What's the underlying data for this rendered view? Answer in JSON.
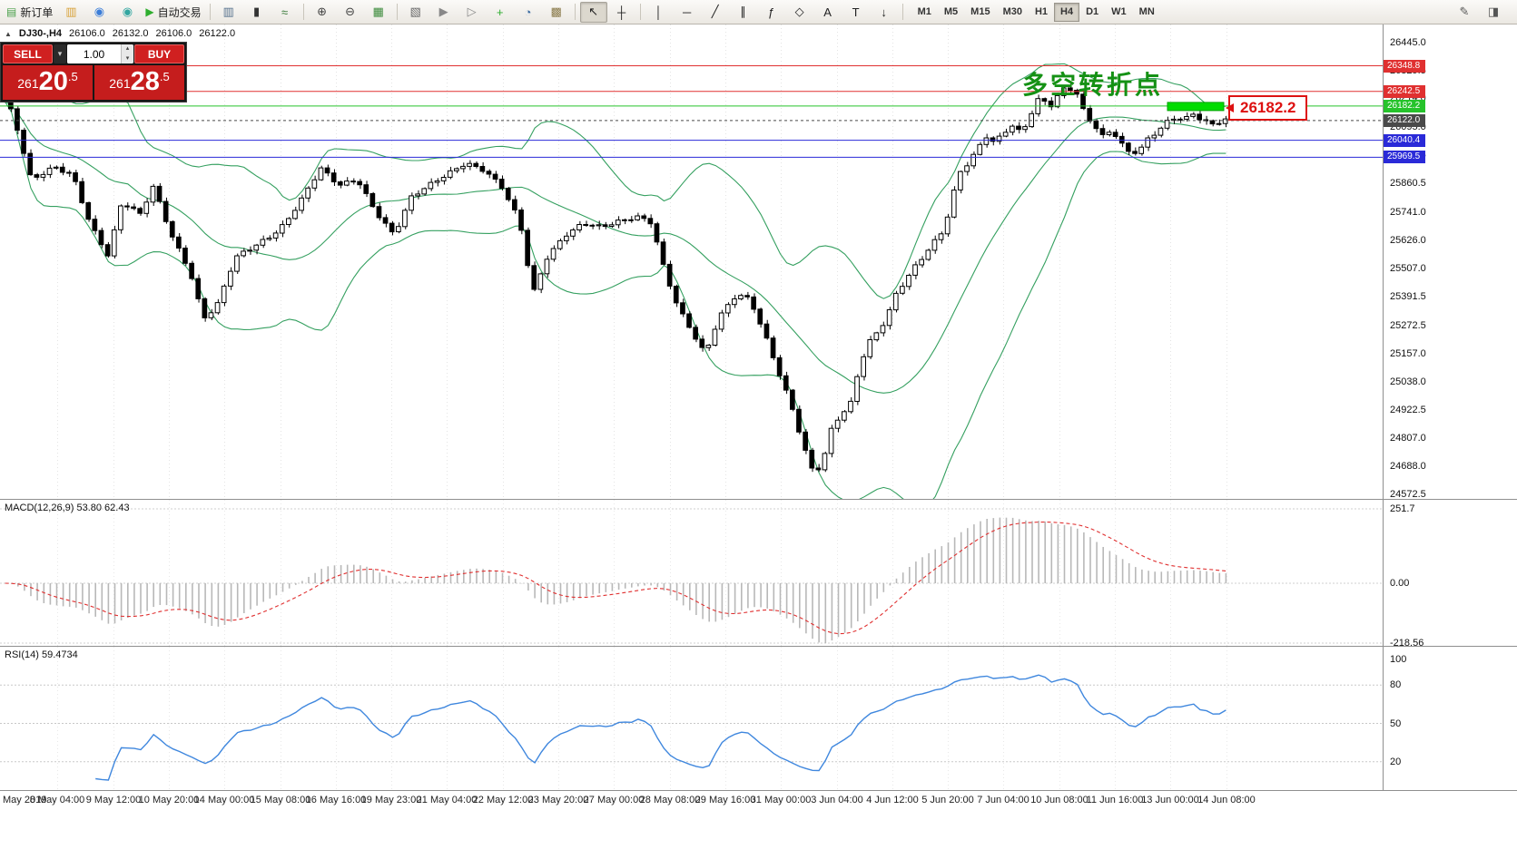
{
  "toolbar": {
    "items": [
      {
        "kind": "button",
        "name": "new-order-button",
        "icon_name": "new-order-icon",
        "glyph": "▤",
        "glyph_color": "#4aa04a",
        "label": "新订单"
      },
      {
        "kind": "icon",
        "name": "chart-window-icon",
        "glyph": "▥",
        "color": "#d8a23a"
      },
      {
        "kind": "icon",
        "name": "market-watch-icon",
        "glyph": "◉",
        "color": "#3b7dd8"
      },
      {
        "kind": "icon",
        "name": "strategy-tester-icon",
        "glyph": "◉",
        "color": "#32a6a0"
      },
      {
        "kind": "button",
        "name": "auto-trading-button",
        "icon_name": "auto-trading-icon",
        "glyph": "▶",
        "glyph_color": "#2fae2f",
        "label": "自动交易"
      },
      {
        "kind": "sep"
      },
      {
        "kind": "icon",
        "name": "bar-chart-icon",
        "glyph": "▥",
        "color": "#55708c"
      },
      {
        "kind": "icon",
        "name": "candlestick-chart-icon",
        "glyph": "▮",
        "color": "#333333"
      },
      {
        "kind": "icon",
        "name": "line-chart-icon",
        "glyph": "≈",
        "color": "#3a7a3a"
      },
      {
        "kind": "sep"
      },
      {
        "kind": "icon",
        "name": "zoom-in-icon",
        "glyph": "⊕",
        "color": "#444444"
      },
      {
        "kind": "icon",
        "name": "zoom-out-icon",
        "glyph": "⊖",
        "color": "#444444"
      },
      {
        "kind": "icon",
        "name": "tile-windows-icon",
        "glyph": "▦",
        "color": "#3a8a3a"
      },
      {
        "kind": "sep"
      },
      {
        "kind": "icon",
        "name": "arrange-windows-icon",
        "glyph": "▧",
        "color": "#666666"
      },
      {
        "kind": "icon",
        "name": "auto-scroll-icon",
        "glyph": "▶",
        "color": "#888888"
      },
      {
        "kind": "icon",
        "name": "chart-shift-icon",
        "glyph": "▷",
        "color": "#888888"
      },
      {
        "kind": "icon",
        "name": "add-indicator-icon",
        "glyph": "+",
        "color": "#2fae2f"
      },
      {
        "kind": "icon",
        "name": "periods-icon",
        "glyph": "◔",
        "color": "#3a6aa0"
      },
      {
        "kind": "icon",
        "name": "templates-icon",
        "glyph": "▩",
        "color": "#8a7a4a"
      },
      {
        "kind": "sep"
      },
      {
        "kind": "icon",
        "name": "cursor-icon",
        "glyph": "↖",
        "color": "#222222",
        "active": true
      },
      {
        "kind": "icon",
        "name": "crosshair-icon",
        "glyph": "┼",
        "color": "#222222"
      },
      {
        "kind": "sep"
      },
      {
        "kind": "icon",
        "name": "vertical-line-icon",
        "glyph": "│",
        "color": "#222222"
      },
      {
        "kind": "icon",
        "name": "horizontal-line-icon",
        "glyph": "─",
        "color": "#222222"
      },
      {
        "kind": "icon",
        "name": "trendline-icon",
        "glyph": "╱",
        "color": "#222222"
      },
      {
        "kind": "icon",
        "name": "equidistant-channel-icon",
        "glyph": "∥",
        "color": "#222222"
      },
      {
        "kind": "icon",
        "name": "fibonacci-icon",
        "glyph": "ƒ",
        "color": "#222222"
      },
      {
        "kind": "icon",
        "name": "shapes-icon",
        "glyph": "◇",
        "color": "#222222"
      },
      {
        "kind": "icon",
        "name": "text-icon",
        "glyph": "A",
        "color": "#222222"
      },
      {
        "kind": "icon",
        "name": "text-label-icon",
        "glyph": "T",
        "color": "#222222"
      },
      {
        "kind": "icon",
        "name": "arrows-icon",
        "glyph": "↓",
        "color": "#222222"
      },
      {
        "kind": "sep"
      }
    ],
    "timeframes": {
      "items": [
        "M1",
        "M5",
        "M15",
        "M30",
        "H1",
        "H4",
        "D1",
        "W1",
        "MN"
      ],
      "active": "H4"
    },
    "right_icons": [
      {
        "name": "chart-edit-icon",
        "glyph": "✎",
        "color": "#555555"
      },
      {
        "name": "expert-advisor-icon",
        "glyph": "◨",
        "color": "#555555"
      }
    ]
  },
  "info_bar": {
    "collapse_glyph": "▲",
    "symbol": "DJ30-,H4",
    "open": "26106.0",
    "high": "26132.0",
    "low": "26106.0",
    "close": "26122.0"
  },
  "trade_widget": {
    "sell_label": "SELL",
    "buy_label": "BUY",
    "volume": "1.00",
    "glyphs": {
      "dropdown": "▾",
      "up": "▴",
      "down": "▾"
    },
    "sell_price": {
      "pre": "261",
      "big": "20",
      "dec": ".5"
    },
    "buy_price": {
      "pre": "261",
      "big": "28",
      "dec": ".5"
    }
  },
  "price_axis": {
    "ticks": [
      "26445.0",
      "26329.5",
      "26214.0",
      "26095.0",
      "25979.5",
      "25860.5",
      "25741.0",
      "25626.0",
      "25507.0",
      "25391.5",
      "25272.5",
      "25157.0",
      "25038.0",
      "24922.5",
      "24807.0",
      "24688.0",
      "24572.5"
    ]
  },
  "chart_data": {
    "type": "candlestick",
    "symbol": "DJ30-",
    "timeframe": "H4",
    "ohlc_current": {
      "open": 26106.0,
      "high": 26132.0,
      "low": 26106.0,
      "close": 26122.0
    },
    "y_range": {
      "top": 26520,
      "bottom": 24550
    },
    "bars": 190,
    "close_anchors": [
      [
        0,
        26200
      ],
      [
        0.007,
        26150
      ],
      [
        0.022,
        25870
      ],
      [
        0.041,
        25930
      ],
      [
        0.056,
        25900
      ],
      [
        0.07,
        25700
      ],
      [
        0.085,
        25560
      ],
      [
        0.096,
        25780
      ],
      [
        0.111,
        25730
      ],
      [
        0.122,
        25850
      ],
      [
        0.137,
        25650
      ],
      [
        0.152,
        25500
      ],
      [
        0.163,
        25300
      ],
      [
        0.174,
        25350
      ],
      [
        0.189,
        25550
      ],
      [
        0.204,
        25600
      ],
      [
        0.219,
        25650
      ],
      [
        0.23,
        25700
      ],
      [
        0.244,
        25800
      ],
      [
        0.259,
        25920
      ],
      [
        0.274,
        25850
      ],
      [
        0.289,
        25880
      ],
      [
        0.304,
        25750
      ],
      [
        0.319,
        25650
      ],
      [
        0.333,
        25800
      ],
      [
        0.348,
        25850
      ],
      [
        0.363,
        25900
      ],
      [
        0.378,
        25950
      ],
      [
        0.393,
        25920
      ],
      [
        0.407,
        25850
      ],
      [
        0.422,
        25700
      ],
      [
        0.433,
        25400
      ],
      [
        0.444,
        25550
      ],
      [
        0.459,
        25650
      ],
      [
        0.474,
        25700
      ],
      [
        0.489,
        25680
      ],
      [
        0.504,
        25700
      ],
      [
        0.519,
        25720
      ],
      [
        0.53,
        25700
      ],
      [
        0.541,
        25500
      ],
      [
        0.552,
        25350
      ],
      [
        0.563,
        25250
      ],
      [
        0.574,
        25150
      ],
      [
        0.585,
        25300
      ],
      [
        0.6,
        25400
      ],
      [
        0.611,
        25380
      ],
      [
        0.622,
        25250
      ],
      [
        0.633,
        25100
      ],
      [
        0.644,
        24950
      ],
      [
        0.656,
        24750
      ],
      [
        0.663,
        24650
      ],
      [
        0.67,
        24700
      ],
      [
        0.678,
        24850
      ],
      [
        0.685,
        24900
      ],
      [
        0.693,
        24950
      ],
      [
        0.7,
        25100
      ],
      [
        0.707,
        25200
      ],
      [
        0.715,
        25250
      ],
      [
        0.722,
        25300
      ],
      [
        0.73,
        25400
      ],
      [
        0.737,
        25450
      ],
      [
        0.744,
        25500
      ],
      [
        0.752,
        25550
      ],
      [
        0.759,
        25600
      ],
      [
        0.767,
        25650
      ],
      [
        0.774,
        25750
      ],
      [
        0.781,
        25900
      ],
      [
        0.789,
        25950
      ],
      [
        0.796,
        26000
      ],
      [
        0.804,
        26060
      ],
      [
        0.811,
        26030
      ],
      [
        0.819,
        26070
      ],
      [
        0.826,
        26100
      ],
      [
        0.833,
        26060
      ],
      [
        0.841,
        26150
      ],
      [
        0.848,
        26220
      ],
      [
        0.856,
        26180
      ],
      [
        0.863,
        26230
      ],
      [
        0.87,
        26270
      ],
      [
        0.878,
        26240
      ],
      [
        0.885,
        26150
      ],
      [
        0.893,
        26100
      ],
      [
        0.9,
        26050
      ],
      [
        0.907,
        26080
      ],
      [
        0.915,
        26020
      ],
      [
        0.922,
        25980
      ],
      [
        0.93,
        26000
      ],
      [
        0.937,
        26050
      ],
      [
        0.944,
        26080
      ],
      [
        0.952,
        26120
      ],
      [
        0.959,
        26140
      ],
      [
        0.967,
        26130
      ],
      [
        0.974,
        26150
      ],
      [
        0.981,
        26120
      ],
      [
        0.989,
        26100
      ],
      [
        1,
        26122
      ]
    ],
    "bollinger": {
      "period": 20,
      "deviation": 2,
      "color": "#35a060"
    },
    "levels": [
      {
        "price": 26348.8,
        "label": "26348.8",
        "color": "#e03030",
        "style": "solid"
      },
      {
        "price": 26242.5,
        "label": "26242.5",
        "color": "#e03030",
        "style": "solid"
      },
      {
        "price": 26182.2,
        "label": "26182.2",
        "color": "#26c32b",
        "style": "solid"
      },
      {
        "price": 26122.0,
        "label": "26122.0",
        "color": "#4a4a4a",
        "style": "dashed"
      },
      {
        "price": 26040.4,
        "label": "26040.4",
        "color": "#2a2ad8",
        "style": "solid"
      },
      {
        "price": 25969.5,
        "label": "25969.5",
        "color": "#2a2ad8",
        "style": "solid"
      }
    ],
    "highlight_marker": {
      "x": 1286,
      "width": 62,
      "price": 26182.2,
      "color": "#00dc00"
    },
    "annotations": {
      "turning_point": {
        "text": "多空转折点",
        "color": "#149114"
      },
      "price_callout": {
        "text": "26182.2",
        "color": "#dd1111"
      }
    },
    "macd": {
      "label": "MACD(12,26,9) 53.80 62.43",
      "params": [
        12,
        26,
        9
      ],
      "current": [
        53.8,
        62.43
      ],
      "axis_ticks": [
        "251.7",
        "0.00",
        "-218.56"
      ],
      "histogram_color": "#b8b8b8",
      "signal_color": "#e03030"
    },
    "rsi": {
      "label": "RSI(14) 59.4734",
      "period": 14,
      "current": 59.4734,
      "axis_ticks": [
        "100",
        "80",
        "50",
        "20"
      ],
      "level_lines": [
        80,
        50,
        20
      ],
      "color": "#3f87de"
    },
    "x_labels": [
      "May 2019",
      "8 May 04:00",
      "9 May 12:00",
      "10 May 20:00",
      "14 May 00:00",
      "15 May 08:00",
      "16 May 16:00",
      "19 May 23:00",
      "21 May 04:00",
      "22 May 12:00",
      "23 May 20:00",
      "27 May 00:00",
      "28 May 08:00",
      "29 May 16:00",
      "31 May 00:00",
      "3 Jun 04:00",
      "4 Jun 12:00",
      "5 Jun 20:00",
      "7 Jun 04:00",
      "10 Jun 08:00",
      "11 Jun 16:00",
      "13 Jun 00:00",
      "14 Jun 08:00"
    ]
  }
}
